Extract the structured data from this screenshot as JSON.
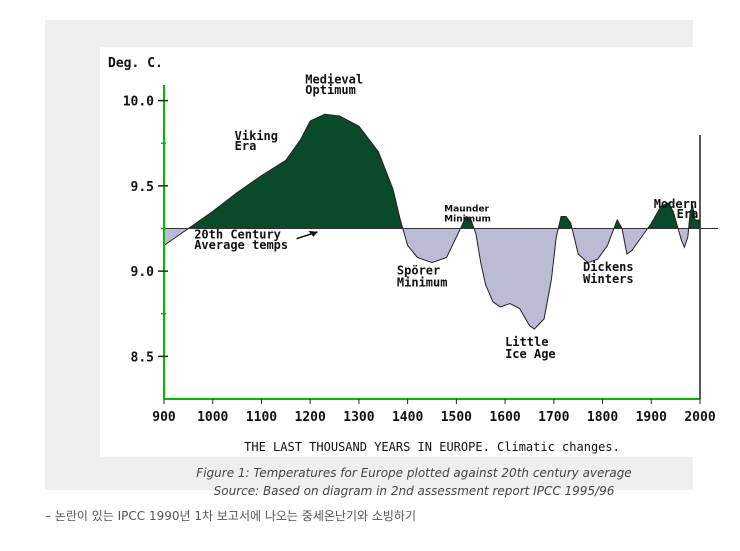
{
  "chart_data": {
    "type": "area",
    "title": "THE LAST THOUSAND YEARS IN EUROPE. Climatic changes.",
    "ylabel": "Deg. C.",
    "xlabel": "",
    "xlim": [
      900,
      2000
    ],
    "ylim": [
      8.25,
      10.15
    ],
    "baseline": 9.25,
    "y_ticks": [
      10.0,
      9.5,
      9.0,
      8.5
    ],
    "y_tick_labels": [
      "10.0",
      "9.5",
      "9.0",
      "8.5"
    ],
    "x_ticks": [
      900,
      1000,
      1100,
      1200,
      1300,
      1400,
      1500,
      1600,
      1700,
      1800,
      1900,
      2000
    ],
    "x_tick_labels": [
      "900",
      "1000",
      "1100",
      "1200",
      "1300",
      "1400",
      "1500",
      "1600",
      "1700",
      "1800",
      "1900",
      "2000"
    ],
    "x": [
      900,
      950,
      1000,
      1050,
      1100,
      1150,
      1180,
      1200,
      1230,
      1260,
      1300,
      1340,
      1370,
      1385,
      1400,
      1420,
      1450,
      1480,
      1500,
      1520,
      1530,
      1540,
      1550,
      1560,
      1575,
      1590,
      1610,
      1630,
      1650,
      1660,
      1680,
      1695,
      1705,
      1715,
      1725,
      1735,
      1750,
      1770,
      1790,
      1810,
      1830,
      1840,
      1850,
      1860,
      1880,
      1900,
      1920,
      1935,
      1945,
      1955,
      1962,
      1968,
      1975,
      1980,
      1985,
      1990,
      1995,
      2000
    ],
    "y": [
      9.15,
      9.25,
      9.35,
      9.46,
      9.56,
      9.65,
      9.77,
      9.88,
      9.92,
      9.91,
      9.85,
      9.7,
      9.48,
      9.3,
      9.15,
      9.08,
      9.05,
      9.08,
      9.2,
      9.32,
      9.3,
      9.22,
      9.05,
      8.92,
      8.82,
      8.79,
      8.81,
      8.78,
      8.68,
      8.66,
      8.72,
      8.95,
      9.2,
      9.32,
      9.32,
      9.28,
      9.1,
      9.05,
      9.07,
      9.15,
      9.3,
      9.25,
      9.1,
      9.12,
      9.2,
      9.28,
      9.38,
      9.4,
      9.35,
      9.25,
      9.18,
      9.14,
      9.2,
      9.35,
      9.38,
      9.3,
      9.3,
      9.3
    ],
    "annotations": [
      {
        "text": "Medieval",
        "x": 1190,
        "y": 10.1
      },
      {
        "text": "Optimum",
        "x": 1190,
        "y": 10.04
      },
      {
        "text": "Viking",
        "x": 1045,
        "y": 9.77
      },
      {
        "text": "Era",
        "x": 1045,
        "y": 9.71
      },
      {
        "text": "20th Century",
        "x": 962,
        "y": 9.19
      },
      {
        "text": "Average temps",
        "x": 962,
        "y": 9.13
      },
      {
        "text": "Spörer",
        "x": 1378,
        "y": 8.98
      },
      {
        "text": "Minimum",
        "x": 1378,
        "y": 8.91
      },
      {
        "text": "Maunder",
        "x": 1475,
        "y": 9.35
      },
      {
        "text": "Minimum",
        "x": 1475,
        "y": 9.29
      },
      {
        "text": "Dickens",
        "x": 1760,
        "y": 9.0
      },
      {
        "text": "Winters",
        "x": 1760,
        "y": 8.93
      },
      {
        "text": "Little",
        "x": 1600,
        "y": 8.56
      },
      {
        "text": "Ice Age",
        "x": 1600,
        "y": 8.49
      },
      {
        "text": "Modern",
        "x": 1905,
        "y": 9.37
      },
      {
        "text": "Era",
        "x": 1952,
        "y": 9.31
      }
    ],
    "colors": {
      "warm": "#0a4a2a",
      "cold": "#bbbbd6",
      "axis": "#00bb00",
      "text": "#111111"
    }
  },
  "caption": {
    "line1": "Figure 1: Temperatures for Europe plotted against 20th century average",
    "line2": "Source: Based on diagram in 2nd assessment report IPCC 1995/96"
  },
  "below_text": "– 논란이 있는 IPCC 1990년 1차 보고서에 나오는 중세온난기와 소빙하기"
}
